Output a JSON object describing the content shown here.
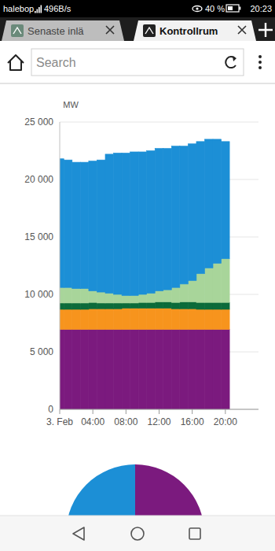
{
  "status_bar": {
    "carrier": "halebop",
    "speed": "496B/s",
    "battery": "40 %",
    "time": "20:23"
  },
  "tabs": [
    {
      "title": "Senaste inlä"
    },
    {
      "title": "Kontrollrum"
    }
  ],
  "address_bar": {
    "placeholder": "Search"
  },
  "chart_data": [
    {
      "type": "area",
      "line_style": "step",
      "stacked": true,
      "grid": true,
      "y_label": "MW",
      "x": [
        0,
        1,
        2,
        3,
        4,
        5,
        6,
        7,
        8,
        9,
        10,
        11,
        12,
        13,
        14,
        15,
        16,
        17,
        18,
        19,
        20
      ],
      "xlim": [
        0,
        24
      ],
      "xticks": [
        {
          "value": 0,
          "label": "3. Feb"
        },
        {
          "value": 4,
          "label": "04:00"
        },
        {
          "value": 8,
          "label": "08:00"
        },
        {
          "value": 12,
          "label": "12:00"
        },
        {
          "value": 16,
          "label": "16:00"
        },
        {
          "value": 20,
          "label": "20:00"
        }
      ],
      "ylim": [
        0,
        25000
      ],
      "yticks": [
        0,
        {
          "value": 5000,
          "label": "5 000"
        },
        {
          "value": 10000,
          "label": "10 000"
        },
        {
          "value": 15000,
          "label": "15 000"
        },
        {
          "value": 20000,
          "label": "20 000"
        },
        {
          "value": 25000,
          "label": "25 000"
        }
      ],
      "series": [
        {
          "color": "#7b1a7e",
          "values": [
            6950,
            6950,
            6950,
            6950,
            6950,
            6950,
            6950,
            6950,
            6950,
            6950,
            6950,
            6950,
            6950,
            6950,
            6950,
            6950,
            6950,
            6950,
            6950,
            6950,
            6950
          ]
        },
        {
          "color": "#f7941d",
          "values": [
            1750,
            1750,
            1750,
            1750,
            1800,
            1800,
            1800,
            1800,
            1850,
            1850,
            1850,
            1850,
            1850,
            1850,
            1800,
            1800,
            1800,
            1750,
            1750,
            1750,
            1750
          ]
        },
        {
          "color": "#0b6b3a",
          "values": [
            550,
            550,
            550,
            550,
            550,
            500,
            500,
            500,
            450,
            450,
            500,
            500,
            550,
            550,
            550,
            600,
            600,
            600,
            600,
            600,
            600
          ]
        },
        {
          "color": "#a8d59a",
          "values": [
            1350,
            1350,
            1250,
            1250,
            1000,
            950,
            850,
            750,
            650,
            650,
            700,
            800,
            950,
            1050,
            1300,
            1550,
            1850,
            2500,
            3000,
            3400,
            3800
          ]
        },
        {
          "color": "#1c8fd6",
          "values": [
            11200,
            11100,
            11000,
            11000,
            11300,
            11500,
            12100,
            12300,
            12400,
            12500,
            12400,
            12400,
            12400,
            12300,
            12300,
            12000,
            11900,
            11500,
            11200,
            10800,
            10200
          ]
        }
      ]
    },
    {
      "type": "pie",
      "values": [
        50,
        50
      ],
      "colors": [
        "#7b1a7e",
        "#1c8fd6"
      ]
    }
  ]
}
